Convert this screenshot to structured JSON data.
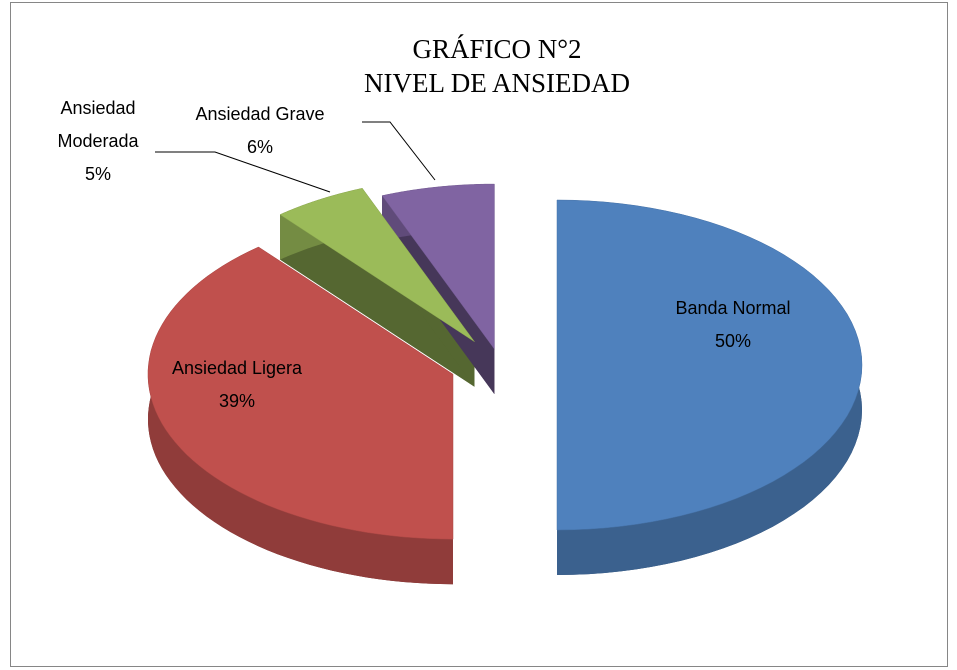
{
  "chart_data": {
    "type": "pie",
    "title": "GRÁFICO N°2",
    "subtitle": "NIVEL DE ANSIEDAD",
    "categories": [
      "Banda Normal",
      "Ansiedad Ligera",
      "Ansiedad Moderada",
      "Ansiedad Grave"
    ],
    "values": [
      50,
      39,
      5,
      6
    ],
    "value_labels": [
      "50%",
      "39%",
      "5%",
      "6%"
    ],
    "colors": [
      "#4f81bd",
      "#c0504d",
      "#9bbb59",
      "#8064a2"
    ]
  }
}
